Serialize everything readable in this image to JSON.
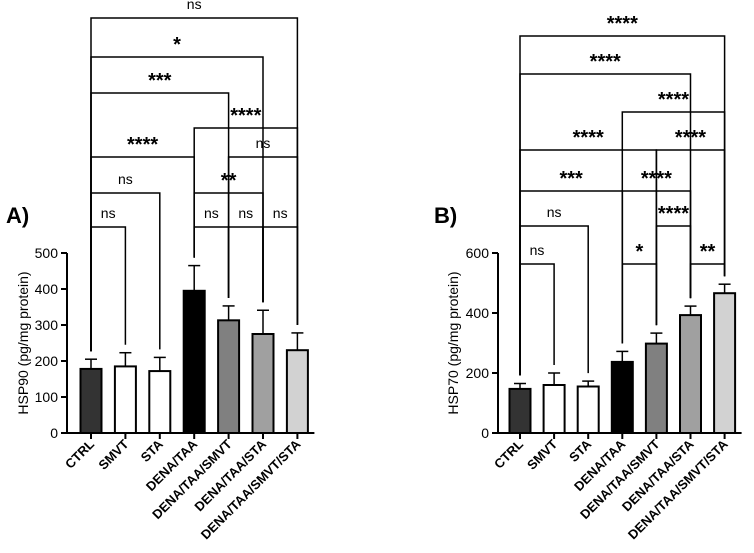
{
  "figure": {
    "description_free": true
  },
  "chart_data": [
    {
      "type": "bar",
      "panel_label": "A)",
      "ylabel": "HSP90 (pg/mg protein)",
      "ylim": [
        0,
        500
      ],
      "yticks": [
        0,
        100,
        200,
        300,
        400,
        500
      ],
      "categories": [
        "CTRL",
        "SMVT",
        "STA",
        "DENA/TAA",
        "DENA/TAA/SMVT",
        "DENA/TAA/STA",
        "DENA/TAA/SMVT/STA"
      ],
      "values": [
        178,
        185,
        172,
        395,
        313,
        275,
        230
      ],
      "errors": [
        27,
        38,
        38,
        70,
        40,
        66,
        48
      ],
      "bar_colors": [
        "#333333",
        "#ffffff",
        "#ffffff",
        "#000000",
        "#808080",
        "#a0a0a0",
        "#d2d2d2"
      ],
      "comparisons": [
        {
          "a": 0,
          "b": 1,
          "label": "ns",
          "level": 0
        },
        {
          "a": 3,
          "b": 4,
          "label": "ns",
          "level": 0
        },
        {
          "a": 4,
          "b": 5,
          "label": "ns",
          "level": 0
        },
        {
          "a": 5,
          "b": 6,
          "label": "ns",
          "level": 0
        },
        {
          "a": 0,
          "b": 2,
          "label": "ns",
          "level": 1
        },
        {
          "a": 3,
          "b": 5,
          "label": "**",
          "level": 1
        },
        {
          "a": 0,
          "b": 3,
          "label": "****",
          "level": 2
        },
        {
          "a": 4,
          "b": 6,
          "label": "ns",
          "level": 2
        },
        {
          "a": 3,
          "b": 6,
          "label": "****",
          "level": 3
        },
        {
          "a": 0,
          "b": 4,
          "label": "***",
          "level": 4
        },
        {
          "a": 0,
          "b": 5,
          "label": "*",
          "level": 5
        },
        {
          "a": 0,
          "b": 6,
          "label": "ns",
          "level": 6
        }
      ]
    },
    {
      "type": "bar",
      "panel_label": "B)",
      "ylabel": "HSP70 (pg/mg protein)",
      "ylim": [
        0,
        600
      ],
      "yticks": [
        0,
        200,
        400,
        600
      ],
      "categories": [
        "CTRL",
        "SMVT",
        "STA",
        "DENA/TAA",
        "DENA/TAA/SMVT",
        "DENA/TAA/STA",
        "DENA/TAA/SMVT/STA"
      ],
      "values": [
        147,
        160,
        155,
        237,
        298,
        393,
        466
      ],
      "errors": [
        18,
        40,
        18,
        35,
        35,
        30,
        30
      ],
      "bar_colors": [
        "#333333",
        "#ffffff",
        "#ffffff",
        "#000000",
        "#808080",
        "#a0a0a0",
        "#d2d2d2"
      ],
      "comparisons": [
        {
          "a": 0,
          "b": 1,
          "label": "ns",
          "level": 0
        },
        {
          "a": 3,
          "b": 4,
          "label": "*",
          "level": 0
        },
        {
          "a": 5,
          "b": 6,
          "label": "**",
          "level": 0
        },
        {
          "a": 0,
          "b": 2,
          "label": "ns",
          "level": 1
        },
        {
          "a": 4,
          "b": 5,
          "label": "****",
          "level": 1
        },
        {
          "a": 0,
          "b": 3,
          "label": "***",
          "level": 2
        },
        {
          "a": 3,
          "b": 5,
          "label": "****",
          "level": 2
        },
        {
          "a": 0,
          "b": 4,
          "label": "****",
          "level": 3
        },
        {
          "a": 4,
          "b": 6,
          "label": "****",
          "level": 3
        },
        {
          "a": 3,
          "b": 6,
          "label": "****",
          "level": 4
        },
        {
          "a": 0,
          "b": 5,
          "label": "****",
          "level": 5
        },
        {
          "a": 0,
          "b": 6,
          "label": "****",
          "level": 6
        }
      ]
    }
  ]
}
